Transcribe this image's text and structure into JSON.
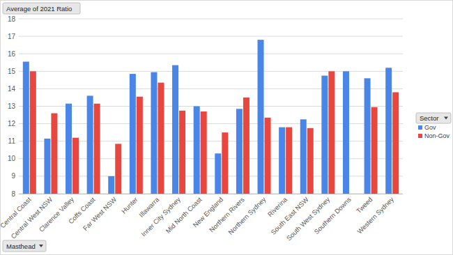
{
  "chart_data": {
    "type": "bar",
    "title": "Average of 2021 Ratio",
    "legend_title": "Sector",
    "annotations": [
      "Masthead"
    ],
    "categories": [
      "Central Coast",
      "Central West NSW",
      "Clarence Valley",
      "Coffs Coast",
      "Far West NSW",
      "Hunter",
      "Illawarra",
      "Inner City Sydney",
      "Mid North Coast",
      "New England",
      "Northern Rivers",
      "Northern Sydney",
      "Riverina",
      "South East NSW",
      "South West Sydney",
      "Southern Downs",
      "Tweed",
      "Western Sydney"
    ],
    "series": [
      {
        "name": "Gov",
        "color": "#4a86e8",
        "values": [
          15.55,
          11.15,
          13.15,
          13.6,
          9.0,
          14.85,
          14.95,
          15.35,
          13.0,
          10.3,
          12.85,
          16.8,
          11.8,
          12.25,
          14.75,
          15.0,
          14.6,
          15.2
        ]
      },
      {
        "name": "Non-Gov",
        "color": "#e8473f",
        "values": [
          15.0,
          12.6,
          11.2,
          13.15,
          10.85,
          13.55,
          14.35,
          12.75,
          12.7,
          11.5,
          13.5,
          12.35,
          11.8,
          11.75,
          15.0,
          null,
          12.95,
          13.8
        ]
      }
    ],
    "ylim": [
      8,
      18
    ],
    "yticks": [
      8,
      9,
      10,
      11,
      12,
      13,
      14,
      15,
      16,
      17,
      18
    ],
    "grid": true,
    "legend": "right"
  }
}
